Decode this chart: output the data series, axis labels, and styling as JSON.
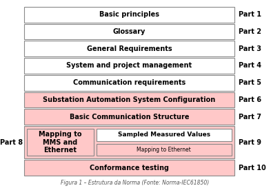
{
  "title": "Figura 1 – Estrutura da Norma (Fonte: Norma-IEC61850)",
  "bg": "#ffffff",
  "rows": [
    {
      "label": "Basic principles",
      "part": "Part 1",
      "color": "#ffffff"
    },
    {
      "label": "Glossary",
      "part": "Part 2",
      "color": "#ffffff"
    },
    {
      "label": "General Requirements",
      "part": "Part 3",
      "color": "#ffffff"
    },
    {
      "label": "System and project management",
      "part": "Part 4",
      "color": "#ffffff"
    },
    {
      "label": "Communication requirements",
      "part": "Part 5",
      "color": "#ffffff"
    },
    {
      "label": "Substation Automation System Configuration",
      "part": "Part 6",
      "color": "#ffc8c8"
    },
    {
      "label": "Basic Communication Structure",
      "part": "Part 7",
      "color": "#ffc8c8"
    }
  ],
  "part8_label": "Part 8",
  "part8_text": "Mapping to\nMMS and\nEthernet",
  "part8_color": "#ffc8c8",
  "part9_label": "Part 9",
  "part9_box1": "Sampled Measured Values",
  "part9_box1_color": "#ffffff",
  "part9_box2": "Mapping to Ethernet",
  "part9_box2_color": "#ffc8c8",
  "part10_label": "Part 10",
  "part10_text": "Conformance testing",
  "part10_color": "#ffc8c8",
  "edge_color": "#888888",
  "lw": 0.8,
  "label_fs": 7,
  "part_fs": 7
}
